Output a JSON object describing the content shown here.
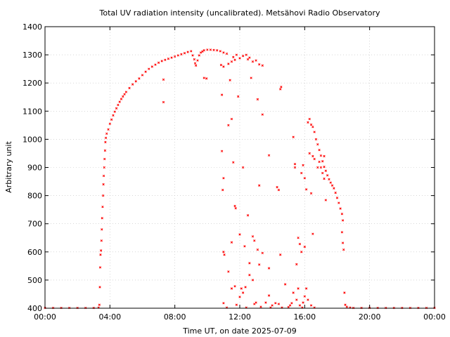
{
  "chart_data": {
    "type": "scatter",
    "title": "Total UV radiation intensity (uncalibrated). Metsähovi Radio Observatory",
    "xlabel": "Time UT, on date 2025-07-09",
    "ylabel": "Arbitrary unit",
    "x_unit": "hours UT",
    "xlim": [
      0,
      24
    ],
    "ylim": [
      400,
      1400
    ],
    "x_ticks": [
      {
        "value": 0,
        "label": "00:00"
      },
      {
        "value": 4,
        "label": "04:00"
      },
      {
        "value": 8,
        "label": "08:00"
      },
      {
        "value": 12,
        "label": "12:00"
      },
      {
        "value": 16,
        "label": "16:00"
      },
      {
        "value": 20,
        "label": "20:00"
      },
      {
        "value": 24,
        "label": "00:00"
      }
    ],
    "y_ticks": [
      {
        "value": 400,
        "label": "400"
      },
      {
        "value": 500,
        "label": "500"
      },
      {
        "value": 600,
        "label": "600"
      },
      {
        "value": 700,
        "label": "700"
      },
      {
        "value": 800,
        "label": "800"
      },
      {
        "value": 900,
        "label": "900"
      },
      {
        "value": 1000,
        "label": "1000"
      },
      {
        "value": 1100,
        "label": "1100"
      },
      {
        "value": 1200,
        "label": "1200"
      },
      {
        "value": 1300,
        "label": "1300"
      },
      {
        "value": 1400,
        "label": "1400"
      }
    ],
    "grid": true,
    "marker_color": "#ff0000",
    "series": [
      {
        "points": [
          [
            0.0,
            401
          ],
          [
            0.5,
            401
          ],
          [
            1.0,
            401
          ],
          [
            1.5,
            401
          ],
          [
            2.0,
            401
          ],
          [
            2.5,
            401
          ],
          [
            3.0,
            401
          ],
          [
            3.3,
            402
          ],
          [
            3.35,
            412
          ],
          [
            3.38,
            475
          ],
          [
            3.4,
            545
          ],
          [
            3.42,
            590
          ],
          [
            3.45,
            605
          ],
          [
            3.48,
            640
          ],
          [
            3.5,
            680
          ],
          [
            3.52,
            720
          ],
          [
            3.55,
            760
          ],
          [
            3.58,
            800
          ],
          [
            3.6,
            840
          ],
          [
            3.62,
            870
          ],
          [
            3.65,
            900
          ],
          [
            3.67,
            930
          ],
          [
            3.7,
            960
          ],
          [
            3.72,
            990
          ],
          [
            3.75,
            1005
          ],
          [
            3.8,
            1020
          ],
          [
            3.9,
            1035
          ],
          [
            4.0,
            1055
          ],
          [
            4.1,
            1070
          ],
          [
            4.2,
            1085
          ],
          [
            4.3,
            1098
          ],
          [
            4.4,
            1110
          ],
          [
            4.5,
            1122
          ],
          [
            4.6,
            1133
          ],
          [
            4.7,
            1143
          ],
          [
            4.8,
            1152
          ],
          [
            4.9,
            1160
          ],
          [
            5.0,
            1168
          ],
          [
            5.2,
            1182
          ],
          [
            5.4,
            1195
          ],
          [
            5.6,
            1206
          ],
          [
            5.8,
            1216
          ],
          [
            6.0,
            1228
          ],
          [
            6.2,
            1240
          ],
          [
            6.4,
            1250
          ],
          [
            6.6,
            1258
          ],
          [
            6.8,
            1265
          ],
          [
            7.0,
            1272
          ],
          [
            7.2,
            1278
          ],
          [
            7.4,
            1282
          ],
          [
            7.6,
            1286
          ],
          [
            7.8,
            1290
          ],
          [
            8.0,
            1294
          ],
          [
            8.2,
            1298
          ],
          [
            8.4,
            1302
          ],
          [
            8.6,
            1306
          ],
          [
            8.8,
            1310
          ],
          [
            9.0,
            1313
          ],
          [
            7.3,
            1212
          ],
          [
            7.3,
            1132
          ],
          [
            9.1,
            1298
          ],
          [
            9.2,
            1284
          ],
          [
            9.25,
            1270
          ],
          [
            9.3,
            1262
          ],
          [
            9.4,
            1280
          ],
          [
            9.5,
            1298
          ],
          [
            9.6,
            1308
          ],
          [
            9.7,
            1312
          ],
          [
            9.8,
            1316
          ],
          [
            10.0,
            1318
          ],
          [
            10.2,
            1318
          ],
          [
            10.4,
            1317
          ],
          [
            10.6,
            1316
          ],
          [
            10.8,
            1313
          ],
          [
            11.0,
            1308
          ],
          [
            11.2,
            1304
          ],
          [
            9.8,
            1218
          ],
          [
            9.95,
            1216
          ],
          [
            10.85,
            1264
          ],
          [
            11.0,
            1258
          ],
          [
            11.3,
            1268
          ],
          [
            11.5,
            1276
          ],
          [
            11.6,
            1292
          ],
          [
            11.7,
            1282
          ],
          [
            11.8,
            1300
          ],
          [
            12.0,
            1288
          ],
          [
            12.2,
            1296
          ],
          [
            12.4,
            1300
          ],
          [
            12.5,
            1284
          ],
          [
            12.6,
            1290
          ],
          [
            12.8,
            1276
          ],
          [
            13.0,
            1280
          ],
          [
            13.2,
            1266
          ],
          [
            13.4,
            1262
          ],
          [
            12.7,
            1218
          ],
          [
            13.1,
            1142
          ],
          [
            13.4,
            1088
          ],
          [
            14.5,
            1178
          ],
          [
            14.55,
            1186
          ],
          [
            13.8,
            943
          ],
          [
            11.4,
            1210
          ],
          [
            11.5,
            1072
          ],
          [
            11.3,
            1050
          ],
          [
            11.9,
            1152
          ],
          [
            10.9,
            1158
          ],
          [
            10.9,
            958
          ],
          [
            11.0,
            862
          ],
          [
            10.95,
            820
          ],
          [
            11.6,
            918
          ],
          [
            12.2,
            900
          ],
          [
            11.7,
            763
          ],
          [
            11.75,
            755
          ],
          [
            12.5,
            730
          ],
          [
            12.0,
            662
          ],
          [
            12.8,
            655
          ],
          [
            13.2,
            836
          ],
          [
            13.4,
            596
          ],
          [
            11.5,
            634
          ],
          [
            11.0,
            600
          ],
          [
            11.05,
            590
          ],
          [
            12.3,
            620
          ],
          [
            12.9,
            640
          ],
          [
            13.1,
            608
          ],
          [
            13.8,
            542
          ],
          [
            12.6,
            518
          ],
          [
            15.3,
            1008
          ],
          [
            15.4,
            912
          ],
          [
            15.4,
            900
          ],
          [
            15.8,
            880
          ],
          [
            15.9,
            908
          ],
          [
            16.0,
            862
          ],
          [
            16.1,
            822
          ],
          [
            15.6,
            650
          ],
          [
            15.8,
            600
          ],
          [
            15.7,
            628
          ],
          [
            16.0,
            618
          ],
          [
            15.5,
            556
          ],
          [
            14.3,
            830
          ],
          [
            14.4,
            820
          ],
          [
            16.2,
            1060
          ],
          [
            16.3,
            1072
          ],
          [
            16.4,
            1052
          ],
          [
            16.5,
            1044
          ],
          [
            16.6,
            1026
          ],
          [
            16.7,
            1000
          ],
          [
            16.8,
            982
          ],
          [
            16.9,
            962
          ],
          [
            17.0,
            942
          ],
          [
            17.1,
            922
          ],
          [
            17.2,
            902
          ],
          [
            17.3,
            888
          ],
          [
            17.4,
            872
          ],
          [
            17.5,
            858
          ],
          [
            17.6,
            846
          ],
          [
            17.7,
            836
          ],
          [
            17.8,
            826
          ],
          [
            17.9,
            810
          ],
          [
            18.0,
            792
          ],
          [
            18.1,
            774
          ],
          [
            18.2,
            754
          ],
          [
            18.3,
            735
          ],
          [
            18.35,
            712
          ],
          [
            16.3,
            950
          ],
          [
            16.5,
            940
          ],
          [
            16.6,
            930
          ],
          [
            16.8,
            900
          ],
          [
            16.9,
            920
          ],
          [
            17.1,
            880
          ],
          [
            17.2,
            860
          ],
          [
            17.3,
            784
          ],
          [
            16.4,
            808
          ],
          [
            16.5,
            664
          ],
          [
            17.0,
            900
          ],
          [
            17.2,
            940
          ],
          [
            18.3,
            670
          ],
          [
            18.35,
            632
          ],
          [
            18.4,
            608
          ],
          [
            18.45,
            455
          ],
          [
            18.5,
            412
          ],
          [
            18.6,
            405
          ],
          [
            18.8,
            402
          ],
          [
            19.0,
            401
          ],
          [
            19.5,
            401
          ],
          [
            20.0,
            401
          ],
          [
            20.5,
            401
          ],
          [
            21.0,
            401
          ],
          [
            21.5,
            401
          ],
          [
            22.0,
            401
          ],
          [
            22.5,
            401
          ],
          [
            23.0,
            401
          ],
          [
            23.5,
            401
          ],
          [
            24.0,
            401
          ],
          [
            11.0,
            418
          ],
          [
            11.5,
            470
          ],
          [
            11.7,
            478
          ],
          [
            11.8,
            412
          ],
          [
            12.0,
            440
          ],
          [
            12.2,
            455
          ],
          [
            12.4,
            402
          ],
          [
            12.6,
            560
          ],
          [
            12.8,
            500
          ],
          [
            13.0,
            420
          ],
          [
            13.3,
            405
          ],
          [
            13.6,
            420
          ],
          [
            13.8,
            445
          ],
          [
            14.0,
            410
          ],
          [
            14.2,
            418
          ],
          [
            14.4,
            415
          ],
          [
            14.6,
            402
          ],
          [
            14.8,
            485
          ],
          [
            15.0,
            404
          ],
          [
            15.2,
            418
          ],
          [
            15.5,
            430
          ],
          [
            15.7,
            410
          ],
          [
            15.9,
            420
          ],
          [
            16.0,
            442
          ],
          [
            16.2,
            430
          ],
          [
            16.4,
            410
          ],
          [
            16.6,
            402
          ],
          [
            11.3,
            530
          ],
          [
            12.1,
            470
          ],
          [
            12.35,
            475
          ],
          [
            13.2,
            555
          ],
          [
            14.5,
            590
          ],
          [
            15.3,
            455
          ],
          [
            15.6,
            470
          ],
          [
            16.1,
            470
          ],
          [
            11.2,
            402
          ],
          [
            12.9,
            415
          ],
          [
            13.9,
            402
          ],
          [
            15.1,
            410
          ],
          [
            15.85,
            402
          ]
        ]
      }
    ]
  }
}
